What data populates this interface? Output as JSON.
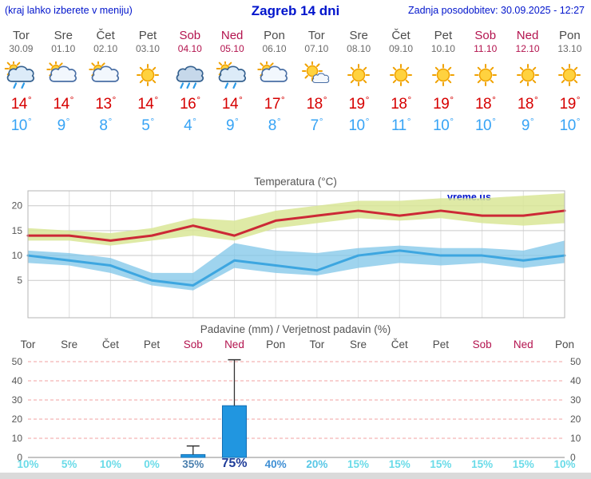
{
  "header": {
    "left_note": "(kraj lahko izberete v meniju)",
    "title": "Zagreb 14 dni",
    "updated": "Zadnja posodobitev: 30.09.2025 - 12:27"
  },
  "units": {
    "degree": "°"
  },
  "colors": {
    "header_blue": "#0014cc",
    "weekend_red": "#b3134e",
    "tmax_red": "#d60000",
    "tmin_blue": "#36a3f5"
  },
  "days": [
    {
      "name": "Tor",
      "date": "30.09",
      "weekend": false,
      "icon": "rain-sun",
      "tmax": 14,
      "tmin": 10
    },
    {
      "name": "Sre",
      "date": "01.10",
      "weekend": false,
      "icon": "sun-cloud",
      "tmax": 14,
      "tmin": 9
    },
    {
      "name": "Čet",
      "date": "02.10",
      "weekend": false,
      "icon": "sun-cloud",
      "tmax": 13,
      "tmin": 8
    },
    {
      "name": "Pet",
      "date": "03.10",
      "weekend": false,
      "icon": "sunny",
      "tmax": 14,
      "tmin": 5
    },
    {
      "name": "Sob",
      "date": "04.10",
      "weekend": true,
      "icon": "rain",
      "tmax": 16,
      "tmin": 4
    },
    {
      "name": "Ned",
      "date": "05.10",
      "weekend": true,
      "icon": "rain-sun",
      "tmax": 14,
      "tmin": 9
    },
    {
      "name": "Pon",
      "date": "06.10",
      "weekend": false,
      "icon": "sun-cloud",
      "tmax": 17,
      "tmin": 8
    },
    {
      "name": "Tor",
      "date": "07.10",
      "weekend": false,
      "icon": "mostly-sunny",
      "tmax": 18,
      "tmin": 7
    },
    {
      "name": "Sre",
      "date": "08.10",
      "weekend": false,
      "icon": "sunny",
      "tmax": 19,
      "tmin": 10
    },
    {
      "name": "Čet",
      "date": "09.10",
      "weekend": false,
      "icon": "sunny",
      "tmax": 18,
      "tmin": 11
    },
    {
      "name": "Pet",
      "date": "10.10",
      "weekend": false,
      "icon": "sunny",
      "tmax": 19,
      "tmin": 10
    },
    {
      "name": "Sob",
      "date": "11.10",
      "weekend": true,
      "icon": "sunny",
      "tmax": 18,
      "tmin": 10
    },
    {
      "name": "Ned",
      "date": "12.10",
      "weekend": true,
      "icon": "sunny",
      "tmax": 18,
      "tmin": 9
    },
    {
      "name": "Pon",
      "date": "13.10",
      "weekend": false,
      "icon": "sunny",
      "tmax": 19,
      "tmin": 10
    }
  ],
  "chart_data": [
    {
      "type": "line",
      "title": "Temperatura (°C)",
      "watermark": "vreme.us",
      "x_labels": [
        "Tor",
        "Sre",
        "Čet",
        "Pet",
        "Sob",
        "Ned",
        "Pon",
        "Tor",
        "Sre",
        "Čet",
        "Pet",
        "Sob",
        "Ned",
        "Pon"
      ],
      "ylim": [
        -2.5,
        23
      ],
      "yticks": [
        5,
        10,
        15,
        20
      ],
      "grid": true,
      "legend_position": "none",
      "series": [
        {
          "name": "max-temperature",
          "color": "#cc2936",
          "width": 3,
          "values": [
            14,
            14,
            13,
            14,
            16,
            14,
            17,
            18,
            19,
            18,
            19,
            18,
            18,
            19
          ]
        },
        {
          "name": "min-temperature",
          "color": "#3da6e0",
          "width": 3,
          "values": [
            10,
            9,
            8,
            5,
            4,
            9,
            8,
            7,
            10,
            11,
            10,
            10,
            9,
            10
          ]
        }
      ],
      "bands": [
        {
          "name": "max-temperature-range",
          "color": "#d9e697",
          "opacity": 0.85,
          "high": [
            15.5,
            15,
            14.5,
            15.5,
            17.5,
            17,
            19,
            20,
            21,
            21,
            21.5,
            21.5,
            22,
            22.5
          ],
          "low": [
            13,
            13,
            12,
            13,
            14,
            13,
            15.5,
            16.5,
            17.5,
            17,
            17.5,
            16.5,
            16,
            16.5
          ]
        },
        {
          "name": "min-temperature-range",
          "color": "#7fc6e8",
          "opacity": 0.75,
          "high": [
            11,
            10.5,
            9.5,
            6.5,
            6.5,
            12.5,
            11,
            10.5,
            11.5,
            12,
            11.5,
            11.5,
            11,
            13
          ],
          "low": [
            8.5,
            8,
            6.5,
            4,
            3,
            7.5,
            6.5,
            6,
            7.5,
            8.5,
            8,
            8.5,
            7.5,
            8.5
          ]
        }
      ]
    },
    {
      "type": "bar",
      "title": "Padavine (mm) / Verjetnost padavin (%)",
      "x_labels": [
        "Tor",
        "Sre",
        "Čet",
        "Pet",
        "Sob",
        "Ned",
        "Pon",
        "Tor",
        "Sre",
        "Čet",
        "Pet",
        "Sob",
        "Ned",
        "Pon"
      ],
      "ylim": [
        0,
        52
      ],
      "yticks": [
        0,
        10,
        20,
        30,
        40,
        50
      ],
      "grid": true,
      "bar_color": "#2196e0",
      "bar_border": "#0f6cb2",
      "bars_mm": [
        0,
        0,
        0,
        0,
        1.5,
        27,
        0,
        0,
        0,
        0,
        0,
        0,
        0,
        0
      ],
      "whisker_max_mm": [
        0,
        0,
        0,
        0,
        6,
        51,
        0,
        0,
        0,
        0,
        0,
        0,
        0,
        0
      ],
      "probabilities": [
        {
          "label": "10%",
          "color": "#6adbe8"
        },
        {
          "label": "5%",
          "color": "#6adbe8"
        },
        {
          "label": "10%",
          "color": "#6adbe8"
        },
        {
          "label": "0%",
          "color": "#6adbe8"
        },
        {
          "label": "35%",
          "color": "#4a7fae"
        },
        {
          "label": "75%",
          "color": "#1f3d99",
          "size": "large"
        },
        {
          "label": "40%",
          "color": "#3f8fd4"
        },
        {
          "label": "20%",
          "color": "#58c7e6"
        },
        {
          "label": "15%",
          "color": "#6adbe8"
        },
        {
          "label": "15%",
          "color": "#6adbe8"
        },
        {
          "label": "15%",
          "color": "#6adbe8"
        },
        {
          "label": "15%",
          "color": "#6adbe8"
        },
        {
          "label": "15%",
          "color": "#6adbe8"
        },
        {
          "label": "10%",
          "color": "#6adbe8"
        }
      ]
    }
  ]
}
